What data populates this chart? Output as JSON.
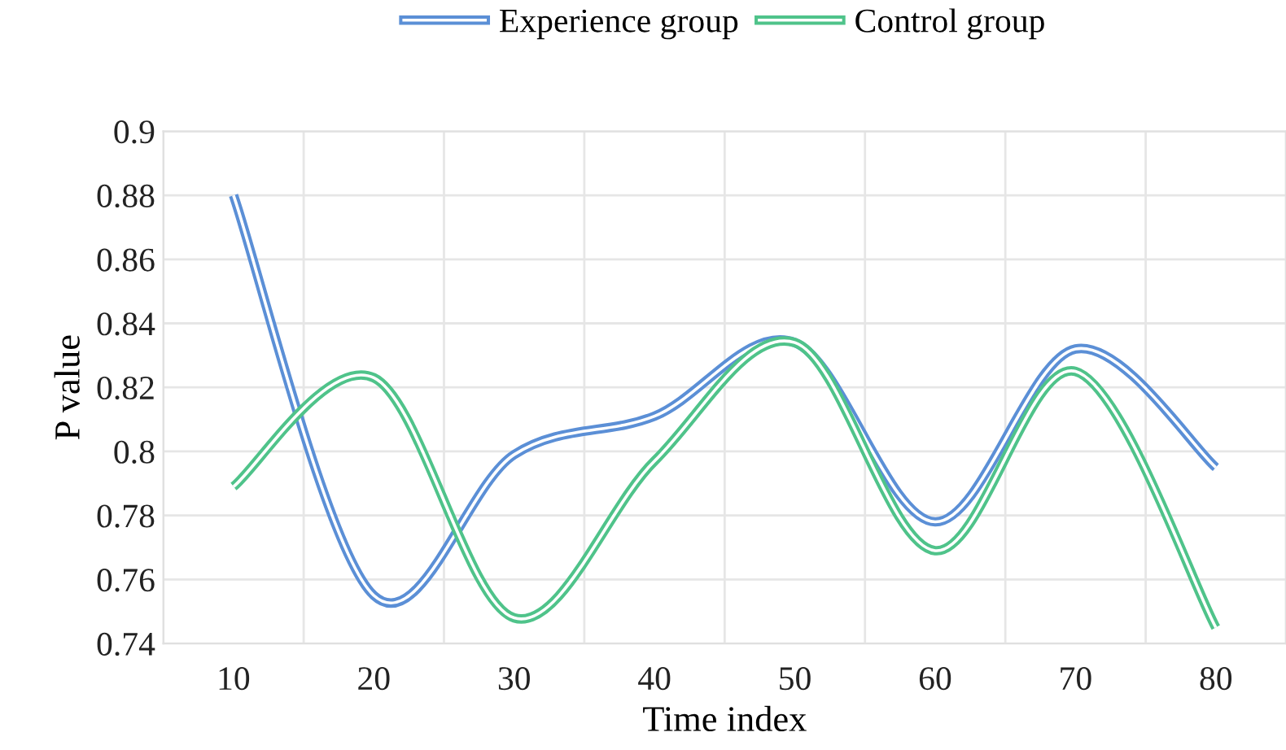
{
  "chart_data": {
    "type": "line",
    "xlabel": "Time index",
    "ylabel": "P value",
    "categories": [
      "10",
      "20",
      "30",
      "40",
      "50",
      "60",
      "70",
      "80"
    ],
    "series": [
      {
        "name": "Experience group",
        "color": "#5b8fd6",
        "values": [
          0.88,
          0.755,
          0.799,
          0.811,
          0.834,
          0.778,
          0.832,
          0.795
        ]
      },
      {
        "name": "Control group",
        "color": "#4fc38a",
        "values": [
          0.789,
          0.823,
          0.748,
          0.797,
          0.834,
          0.769,
          0.825,
          0.745
        ]
      }
    ],
    "ylim": [
      0.74,
      0.9
    ],
    "yticks": [
      0.74,
      0.76,
      0.78,
      0.8,
      0.82,
      0.84,
      0.86,
      0.88,
      0.9
    ],
    "grid": true,
    "legend": "top",
    "line_style": "solid"
  }
}
